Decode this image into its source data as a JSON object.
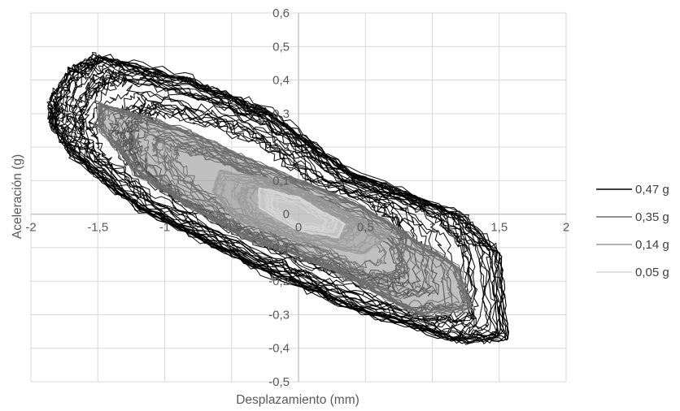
{
  "chart_data": {
    "type": "scatter",
    "title": "",
    "xlabel": "Desplazamiento (mm)",
    "ylabel": "Aceleración (g)",
    "xlim": [
      -2,
      2
    ],
    "ylim": [
      -0.5,
      0.6
    ],
    "x_ticks": [
      -2,
      -1.5,
      -1,
      -0.5,
      0,
      0.5,
      1,
      1.5,
      2
    ],
    "x_tick_labels": [
      "-2",
      "-1,5",
      "-1",
      "-0,5",
      "0",
      "0,5",
      "1",
      "1,5",
      "2"
    ],
    "y_ticks": [
      0.6,
      0.5,
      0.4,
      0.3,
      0.2,
      0.1,
      0,
      -0.1,
      -0.2,
      -0.3,
      -0.4,
      -0.5
    ],
    "y_tick_labels": [
      "0,6",
      "0,5",
      "0,4",
      "0,3",
      "0,2",
      "0,1",
      "0",
      "-0,1",
      "-0,2",
      "-0,3",
      "-0,4",
      "-0,5"
    ],
    "grid": true,
    "legend_position": "right",
    "series": [
      {
        "name": "0,47 g",
        "color": "#000000",
        "envelope": [
          [
            -1.85,
            0.34
          ],
          [
            -1.7,
            0.43
          ],
          [
            -1.5,
            0.47
          ],
          [
            -0.8,
            0.4
          ],
          [
            -0.2,
            0.3
          ],
          [
            0.4,
            0.12
          ],
          [
            1.2,
            0.0
          ],
          [
            1.5,
            -0.12
          ],
          [
            1.55,
            -0.37
          ],
          [
            1.2,
            -0.38
          ],
          [
            0.4,
            -0.28
          ],
          [
            -0.4,
            -0.14
          ],
          [
            -1.2,
            0.02
          ],
          [
            -1.7,
            0.18
          ],
          [
            -1.85,
            0.27
          ]
        ]
      },
      {
        "name": "0,35 g",
        "color": "#6e6e6e",
        "envelope": [
          [
            -1.5,
            0.33
          ],
          [
            -0.9,
            0.26
          ],
          [
            -0.3,
            0.15
          ],
          [
            0.5,
            0.02
          ],
          [
            1.2,
            -0.16
          ],
          [
            1.3,
            -0.28
          ],
          [
            0.9,
            -0.3
          ],
          [
            0.3,
            -0.17
          ],
          [
            -0.5,
            -0.05
          ],
          [
            -1.2,
            0.12
          ],
          [
            -1.5,
            0.26
          ]
        ]
      },
      {
        "name": "0,14 g",
        "color": "#9a9a9a",
        "envelope": [
          [
            -0.6,
            0.13
          ],
          [
            -0.1,
            0.1
          ],
          [
            0.4,
            0.0
          ],
          [
            0.7,
            -0.06
          ],
          [
            0.5,
            -0.12
          ],
          [
            0.0,
            -0.08
          ],
          [
            -0.5,
            -0.01
          ],
          [
            -0.65,
            0.07
          ]
        ]
      },
      {
        "name": "0,05 g",
        "color": "#d6d6d6",
        "envelope": [
          [
            -0.3,
            0.08
          ],
          [
            0.0,
            0.05
          ],
          [
            0.35,
            -0.03
          ],
          [
            0.3,
            -0.07
          ],
          [
            0.0,
            -0.05
          ],
          [
            -0.3,
            0.02
          ]
        ]
      }
    ]
  }
}
